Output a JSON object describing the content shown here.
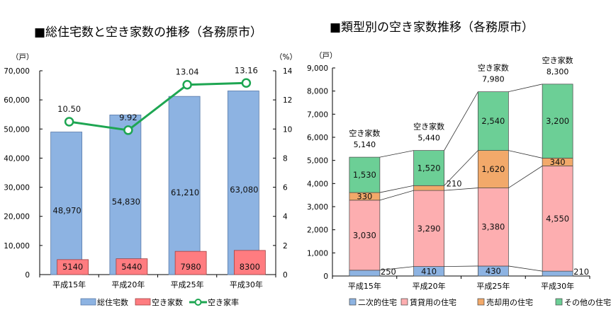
{
  "chart_data": [
    {
      "type": "bar+line",
      "title": "■総住宅数と空き家数の推移（各務原市）",
      "categories": [
        "平成15年",
        "平成20年",
        "平成25年",
        "平成30年"
      ],
      "ylabel_left": "（戸）",
      "ylabel_right": "（%）",
      "ylim_left": [
        0,
        70000
      ],
      "ylim_right": [
        0,
        14
      ],
      "yticks_left": [
        "0",
        "10,000",
        "20,000",
        "30,000",
        "40,000",
        "50,000",
        "60,000",
        "70,000"
      ],
      "yticks_right": [
        "0",
        "2",
        "4",
        "6",
        "8",
        "10",
        "12",
        "14"
      ],
      "grid": false,
      "legend": "bottom",
      "series": [
        {
          "name": "総住宅数",
          "type": "bar",
          "values": [
            48970,
            54830,
            61210,
            63080
          ],
          "labels": [
            "48,970",
            "54,830",
            "61,210",
            "63,080"
          ],
          "color": "#8db3e2"
        },
        {
          "name": "空き家数",
          "type": "bar",
          "values": [
            5140,
            5440,
            7980,
            8300
          ],
          "labels": [
            "5140",
            "5440",
            "7980",
            "8300"
          ],
          "color": "#ff7c80"
        },
        {
          "name": "空き家率",
          "type": "line",
          "axis": "right",
          "values": [
            10.5,
            9.92,
            13.04,
            13.16
          ],
          "labels": [
            "10.50",
            "9.92",
            "13.04",
            "13.16"
          ],
          "color": "#1ea652"
        }
      ]
    },
    {
      "type": "stacked-bar",
      "title": "■類型別の空き家数推移（各務原市）",
      "categories": [
        "平成15年",
        "平成20年",
        "平成25年",
        "平成30年"
      ],
      "ylabel": "（戸）",
      "ylim": [
        0,
        9000
      ],
      "yticks": [
        "0",
        "1,000",
        "2,000",
        "3,000",
        "4,000",
        "5,000",
        "6,000",
        "7,000",
        "8,000",
        "9,000"
      ],
      "grid": false,
      "legend": "bottom",
      "total_caption": "空き家数",
      "totals": [
        "5,140",
        "5,440",
        "7,980",
        "8,300"
      ],
      "series": [
        {
          "name": "二次的住宅",
          "values": [
            250,
            410,
            430,
            210
          ],
          "labels": [
            "250",
            "410",
            "430",
            "210"
          ],
          "color": "#8db3e2"
        },
        {
          "name": "賃貸用の住宅",
          "values": [
            3030,
            3290,
            3380,
            4550
          ],
          "labels": [
            "3,030",
            "3,290",
            "3,380",
            "4,550"
          ],
          "color": "#fdaeb0"
        },
        {
          "name": "売却用の住宅",
          "values": [
            330,
            210,
            1620,
            340
          ],
          "labels": [
            "330",
            "210",
            "1,620",
            "340"
          ],
          "color": "#f2a96a"
        },
        {
          "name": "その他の住宅",
          "values": [
            1530,
            1520,
            2540,
            3200
          ],
          "labels": [
            "1,530",
            "1,520",
            "2,540",
            "3,200"
          ],
          "color": "#6ccf96"
        }
      ]
    }
  ]
}
